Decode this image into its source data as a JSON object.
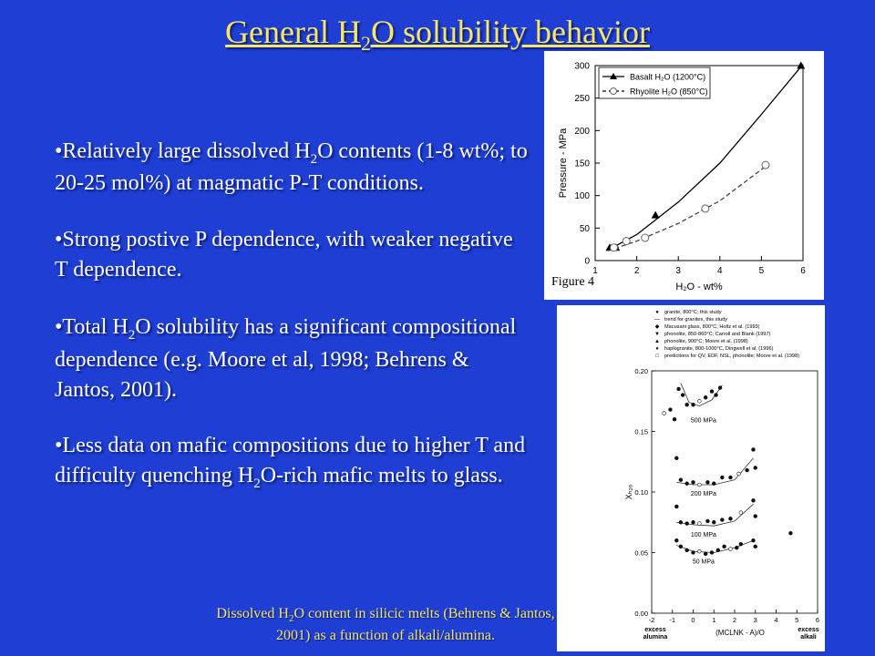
{
  "slide": {
    "title": {
      "pre": "General H",
      "sub": "2",
      "post": "O solubility behavior"
    },
    "bullets": [
      {
        "pre": "•Relatively large dissolved H",
        "sub": "2",
        "post": "O contents (1-8 wt%; to 20-25 mol%) at magmatic P-T conditions."
      },
      {
        "pre": "•Strong postive P dependence, with weaker negative T dependence.",
        "sub": "",
        "post": ""
      },
      {
        "pre": "•Total H",
        "sub": "2",
        "post": "O solubility has a significant compositional dependence (e.g. Moore et al, 1998; Behrens & Jantos, 2001)."
      },
      {
        "pre": "•Less data on mafic compositions due to higher T and difficulty quenching H",
        "sub": "2",
        "post": "O-rich mafic melts to glass."
      }
    ],
    "caption": {
      "pre": "Dissolved H",
      "sub": "2",
      "post": "O content in silicic melts (Behrens & Jantos, 2001) as a function of alkali/alumina."
    },
    "figure_label": "Figure 4"
  },
  "chart_data": [
    {
      "type": "line",
      "xlabel": "H₂O - wt%",
      "ylabel": "Pressure - MPa",
      "xlim": [
        1,
        6
      ],
      "ylim": [
        0,
        300
      ],
      "xticks": [
        1,
        2,
        3,
        4,
        5,
        6
      ],
      "yticks": [
        0,
        50,
        100,
        150,
        200,
        250,
        300
      ],
      "legend_position": "top-left",
      "series": [
        {
          "name": "Basalt H₂O (1200°C)",
          "marker": "triangle",
          "line": "solid",
          "points": [
            [
              1.35,
              20
            ],
            [
              1.5,
              20
            ],
            [
              2.45,
              70
            ],
            [
              5.95,
              300
            ]
          ],
          "curve": [
            [
              1.3,
              16
            ],
            [
              2,
              40
            ],
            [
              3,
              90
            ],
            [
              4,
              150
            ],
            [
              5,
              225
            ],
            [
              6,
              302
            ]
          ]
        },
        {
          "name": "Rhyolite H₂O (850°C)",
          "marker": "open-circle",
          "line": "dashed",
          "points": [
            [
              1.45,
              20
            ],
            [
              1.75,
              30
            ],
            [
              2.2,
              35
            ],
            [
              3.65,
              80
            ],
            [
              5.1,
              147
            ]
          ],
          "curve": [
            [
              1.3,
              15
            ],
            [
              2,
              30
            ],
            [
              3,
              57
            ],
            [
              4,
              92
            ],
            [
              5,
              140
            ],
            [
              5.1,
              145
            ]
          ]
        }
      ]
    },
    {
      "type": "scatter",
      "ylabel": "Xₕ₂ₒ",
      "xlabel": "(MCLNK - A)/O",
      "x_left_label": "excess alumina",
      "x_right_label": "excess alkali",
      "xlim": [
        -2,
        6
      ],
      "ylim": [
        0,
        0.2
      ],
      "xticks": [
        -2,
        -1,
        0,
        1,
        2,
        3,
        4,
        5,
        6
      ],
      "yticks": [
        0.0,
        0.05,
        0.1,
        0.15,
        0.2
      ],
      "legend": [
        {
          "symbol": "●",
          "label": "granite, 800°C; this study"
        },
        {
          "symbol": "—",
          "label": "trend for granites, this study"
        },
        {
          "symbol": "◆",
          "label": "Macusani glass, 800°C; Holtz et al. (1993)"
        },
        {
          "symbol": "▼",
          "label": "phonolite, 850-860°C; Carroll and Blank (1997)"
        },
        {
          "symbol": "▲",
          "label": "phonolite, 900°C; Moore et al. (1998)"
        },
        {
          "symbol": "♦",
          "label": "haplogranite, 800-1000°C, Dingwell et al. (1996)"
        },
        {
          "symbol": "□",
          "label": "predictions for QV, EDF, NSL, phonolite; Moore et al. (1998)"
        }
      ],
      "pressure_labels": [
        "500 MPa",
        "200 MPa",
        "100 MPa",
        "50 MPa"
      ],
      "series": [
        {
          "pressure": "500 MPa",
          "points": [
            [
              -0.7,
              0.185
            ],
            [
              -0.5,
              0.18
            ],
            [
              -0.3,
              0.172
            ],
            [
              0,
              0.172
            ],
            [
              0.3,
              0.175
            ],
            [
              0.6,
              0.178
            ],
            [
              0.9,
              0.183
            ],
            [
              1.1,
              0.18
            ],
            [
              1.3,
              0.186
            ],
            [
              -1.4,
              0.165
            ],
            [
              -0.9,
              0.16
            ],
            [
              -1.1,
              0.168
            ]
          ],
          "trend": [
            [
              -0.6,
              0.19
            ],
            [
              -0.2,
              0.174
            ],
            [
              0.3,
              0.171
            ],
            [
              0.9,
              0.176
            ],
            [
              1.4,
              0.188
            ]
          ]
        },
        {
          "pressure": "200 MPa",
          "points": [
            [
              -0.8,
              0.128
            ],
            [
              -0.6,
              0.11
            ],
            [
              -0.3,
              0.107
            ],
            [
              0,
              0.108
            ],
            [
              0.3,
              0.106
            ],
            [
              0.7,
              0.108
            ],
            [
              1.0,
              0.107
            ],
            [
              1.4,
              0.112
            ],
            [
              1.8,
              0.112
            ],
            [
              2.2,
              0.115
            ],
            [
              2.6,
              0.118
            ],
            [
              2.9,
              0.135
            ],
            [
              3.0,
              0.12
            ]
          ],
          "trend": [
            [
              -0.8,
              0.108
            ],
            [
              0,
              0.106
            ],
            [
              1,
              0.106
            ],
            [
              2,
              0.11
            ],
            [
              2.9,
              0.128
            ]
          ]
        },
        {
          "pressure": "100 MPa",
          "points": [
            [
              -0.8,
              0.088
            ],
            [
              -0.6,
              0.075
            ],
            [
              -0.3,
              0.074
            ],
            [
              0,
              0.075
            ],
            [
              0.3,
              0.074
            ],
            [
              0.7,
              0.076
            ],
            [
              1.0,
              0.075
            ],
            [
              1.4,
              0.077
            ],
            [
              1.8,
              0.078
            ],
            [
              2.3,
              0.083
            ],
            [
              2.9,
              0.093
            ],
            [
              3.0,
              0.08
            ],
            [
              4.7,
              0.066
            ]
          ],
          "trend": [
            [
              -0.8,
              0.075
            ],
            [
              0,
              0.073
            ],
            [
              1,
              0.072
            ],
            [
              2,
              0.076
            ],
            [
              2.9,
              0.09
            ]
          ]
        },
        {
          "pressure": "50 MPa",
          "points": [
            [
              -0.8,
              0.06
            ],
            [
              -0.6,
              0.055
            ],
            [
              -0.3,
              0.052
            ],
            [
              0,
              0.05
            ],
            [
              0.3,
              0.051
            ],
            [
              0.6,
              0.049
            ],
            [
              0.9,
              0.05
            ],
            [
              1.2,
              0.052
            ],
            [
              1.5,
              0.055
            ],
            [
              1.8,
              0.053
            ],
            [
              2.3,
              0.057
            ],
            [
              2.9,
              0.06
            ],
            [
              3.0,
              0.055
            ],
            [
              2.1,
              0.054
            ]
          ],
          "trend": [
            [
              -0.8,
              0.056
            ],
            [
              0,
              0.051
            ],
            [
              1,
              0.05
            ],
            [
              2,
              0.054
            ],
            [
              2.9,
              0.06
            ]
          ]
        }
      ]
    }
  ]
}
